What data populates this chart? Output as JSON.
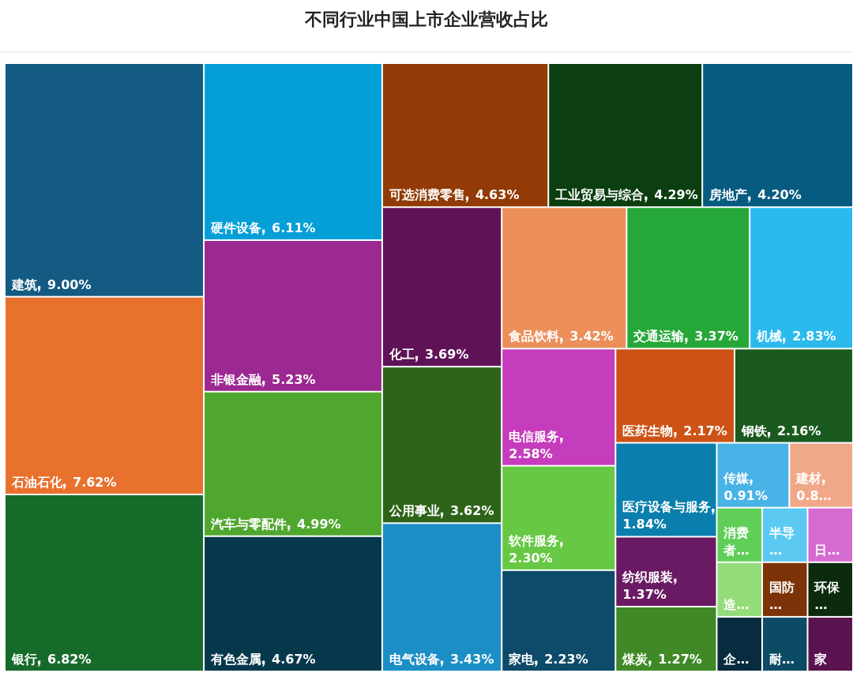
{
  "chart_data": {
    "type": "other",
    "title": "不同行业中国上市企业营收占比",
    "categories": [
      "建筑",
      "石油石化",
      "银行",
      "硬件设备",
      "非银金融",
      "汽车与零配件",
      "有色金属",
      "可选消费零售",
      "工业贸易与综合",
      "房地产",
      "化工",
      "公用事业",
      "电气设备",
      "食品饮料",
      "交通运输",
      "机械",
      "电信服务",
      "软件服务",
      "家电",
      "医药生物",
      "钢铁",
      "医疗设备与服务",
      "纺织服装",
      "煤炭",
      "传媒",
      "建材",
      "消费者…",
      "半导…",
      "日…",
      "造…",
      "企…",
      "国防…",
      "环保…",
      "耐…",
      "家"
    ],
    "values": [
      9.0,
      7.62,
      6.82,
      6.11,
      5.23,
      4.99,
      4.67,
      4.63,
      4.29,
      4.2,
      3.69,
      3.62,
      3.43,
      3.42,
      3.37,
      2.83,
      2.58,
      2.3,
      2.23,
      2.17,
      2.16,
      1.84,
      1.37,
      1.27,
      0.91,
      0.8,
      null,
      null,
      null,
      null,
      null,
      null,
      null,
      null,
      null
    ],
    "value_labels": [
      "9.00%",
      "7.62%",
      "6.82%",
      "6.11%",
      "5.23%",
      "4.99%",
      "4.67%",
      "4.63%",
      "4.29%",
      "4.20%",
      "3.69%",
      "3.62%",
      "3.43%",
      "3.42%",
      "3.37%",
      "2.83%",
      "2.58%",
      "2.30%",
      "2.23%",
      "2.17%",
      "2.16%",
      "1.84%",
      "1.37%",
      "1.27%",
      "0.91%",
      "0.8…",
      null,
      null,
      null,
      null,
      null,
      null,
      null,
      null,
      null
    ],
    "colors": [
      "#135b82",
      "#e8712e",
      "#176b2a",
      "#059fd8",
      "#9c2891",
      "#4fa72e",
      "#06384c",
      "#923b06",
      "#0b3e10",
      "#075b80",
      "#5f1356",
      "#2e6419",
      "#1c8ec6",
      "#ec8f5a",
      "#26a839",
      "#2abaee",
      "#c53cbc",
      "#66c843",
      "#0e4a6a",
      "#cc5315",
      "#1a5a1f",
      "#0a7eac",
      "#6a1a62",
      "#3f8a26",
      "#48b3e6",
      "#f1a888",
      "#5fcf5a",
      "#5cc9f2",
      "#d56bd1",
      "#94dc7a",
      "#072c3f",
      "#7d3308",
      "#0c2a0e",
      "#0b4b63",
      "#591450"
    ]
  }
}
